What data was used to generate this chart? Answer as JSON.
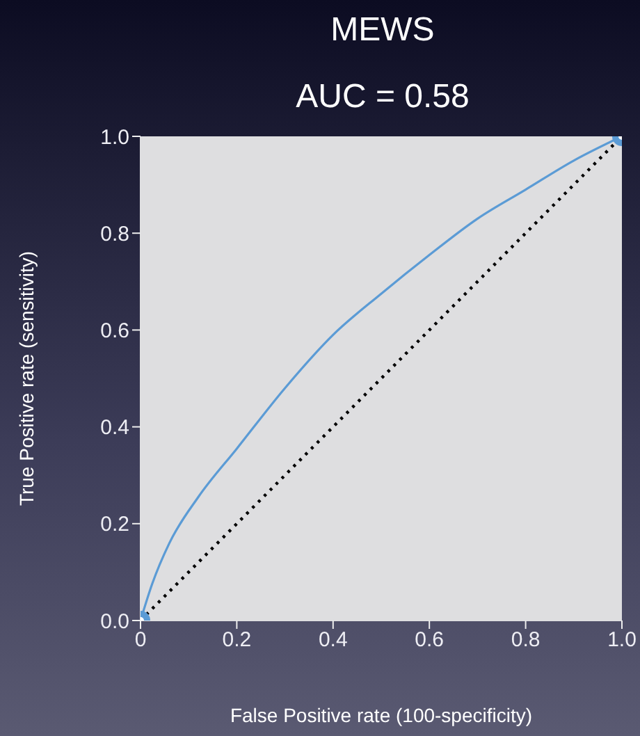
{
  "chart_data": {
    "type": "line",
    "title": "MEWS",
    "subtitle": "AUC = 0.58",
    "xlabel": "False Positive rate (100-specificity)",
    "ylabel": "True Positive rate (sensitivity)",
    "xlim": [
      0,
      1
    ],
    "ylim": [
      0,
      1
    ],
    "xticks": [
      {
        "value": 0,
        "label": "0"
      },
      0.2,
      0.4,
      0.6,
      0.8,
      {
        "value": 1,
        "label": "1.0"
      }
    ],
    "yticks": [
      {
        "value": 0,
        "label": "0.0"
      },
      0.2,
      0.4,
      0.6,
      0.8,
      {
        "value": 1,
        "label": "1.0"
      }
    ],
    "grid": false,
    "series": [
      {
        "color": "#5b9bd5",
        "line_style": "solid",
        "marker": "none",
        "x": [
          0,
          0.024,
          0.06,
          0.12,
          0.2,
          0.3,
          0.4,
          0.5,
          0.6,
          0.7,
          0.8,
          0.9,
          1
        ],
        "values": [
          0,
          0.075,
          0.16,
          0.255,
          0.355,
          0.48,
          0.59,
          0.675,
          0.755,
          0.83,
          0.89,
          0.95,
          1
        ]
      },
      {
        "color": "#000000",
        "line_style": "dotted",
        "marker": "none",
        "x": [
          0,
          1
        ],
        "values": [
          0,
          1
        ]
      },
      {
        "type": "scatter",
        "color": "#5b9bd5",
        "marker": "circle",
        "x": [
          0,
          1
        ],
        "values": [
          0,
          1
        ]
      }
    ]
  }
}
